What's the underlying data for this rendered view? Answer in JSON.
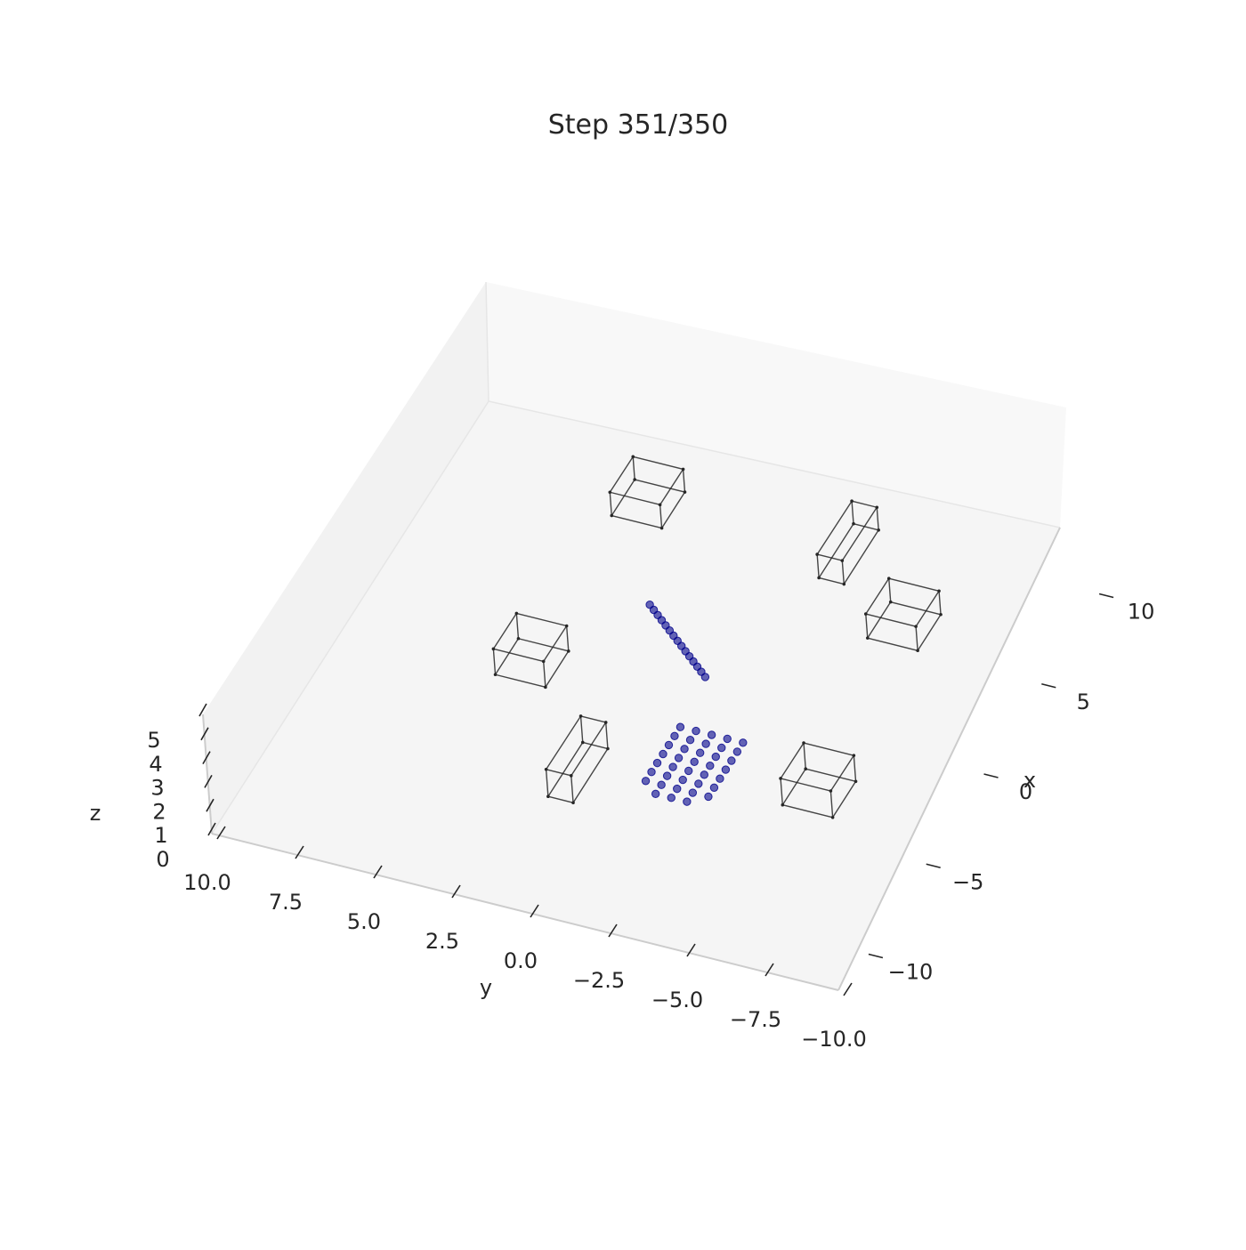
{
  "chart_data": {
    "type": "scatter",
    "projection": "3d",
    "title": "Step 351/350",
    "xlabel": "x",
    "ylabel": "y",
    "zlabel": "z",
    "xlim": [
      -12,
      12
    ],
    "ylim": [
      -10,
      10
    ],
    "zlim": [
      0,
      5
    ],
    "x_ticks": [
      "10",
      "5",
      "0",
      "−5",
      "−10"
    ],
    "y_ticks": [
      "10.0",
      "7.5",
      "5.0",
      "2.5",
      "0.0",
      "−2.5",
      "−5.0",
      "−7.5",
      "−10.0"
    ],
    "z_ticks": [
      "5",
      "4",
      "3",
      "2",
      "1",
      "0"
    ],
    "grid": false,
    "legend": "none",
    "point_color": "#00008b",
    "box_color": "#262626",
    "series": [
      {
        "role": "line-group",
        "points": [
          [
            4.0,
            1.9,
            0.2
          ],
          [
            3.8,
            1.7,
            0.2
          ],
          [
            3.6,
            1.5,
            0.2
          ],
          [
            3.4,
            1.3,
            0.2
          ],
          [
            3.2,
            1.1,
            0.2
          ],
          [
            3.0,
            0.9,
            0.2
          ],
          [
            2.8,
            0.7,
            0.2
          ],
          [
            2.6,
            0.5,
            0.2
          ],
          [
            2.4,
            0.3,
            0.2
          ],
          [
            2.2,
            0.1,
            0.2
          ],
          [
            2.0,
            -0.1,
            0.2
          ],
          [
            1.8,
            -0.3,
            0.2
          ],
          [
            1.6,
            -0.5,
            0.2
          ],
          [
            1.4,
            -0.7,
            0.2
          ],
          [
            1.2,
            -0.9,
            0.2
          ]
        ]
      },
      {
        "role": "grid-group",
        "points": [
          [
            -1.5,
            -1.1,
            0.2
          ],
          [
            -1.5,
            -1.6,
            0.2
          ],
          [
            -1.5,
            -2.1,
            0.2
          ],
          [
            -1.5,
            -2.6,
            0.2
          ],
          [
            -1.5,
            -3.1,
            0.2
          ],
          [
            -2.0,
            -1.1,
            0.2
          ],
          [
            -2.0,
            -1.6,
            0.2
          ],
          [
            -2.0,
            -2.1,
            0.2
          ],
          [
            -2.0,
            -2.6,
            0.2
          ],
          [
            -2.0,
            -3.1,
            0.2
          ],
          [
            -2.5,
            -1.1,
            0.2
          ],
          [
            -2.5,
            -1.6,
            0.2
          ],
          [
            -2.5,
            -2.1,
            0.2
          ],
          [
            -2.5,
            -2.6,
            0.2
          ],
          [
            -2.5,
            -3.1,
            0.2
          ],
          [
            -3.0,
            -1.1,
            0.2
          ],
          [
            -3.0,
            -1.6,
            0.2
          ],
          [
            -3.0,
            -2.1,
            0.2
          ],
          [
            -3.0,
            -2.6,
            0.2
          ],
          [
            -3.0,
            -3.1,
            0.2
          ],
          [
            -3.5,
            -1.1,
            0.2
          ],
          [
            -3.5,
            -1.6,
            0.2
          ],
          [
            -3.5,
            -2.1,
            0.2
          ],
          [
            -3.5,
            -2.6,
            0.2
          ],
          [
            -3.5,
            -3.1,
            0.2
          ],
          [
            -4.0,
            -1.1,
            0.2
          ],
          [
            -4.0,
            -1.6,
            0.2
          ],
          [
            -4.0,
            -2.1,
            0.2
          ],
          [
            -4.0,
            -2.6,
            0.2
          ],
          [
            -4.0,
            -3.1,
            0.2
          ],
          [
            -4.5,
            -1.1,
            0.2
          ],
          [
            -4.5,
            -1.6,
            0.2
          ],
          [
            -4.5,
            -2.1,
            0.2
          ],
          [
            -4.5,
            -2.6,
            0.2
          ],
          [
            -4.5,
            -3.1,
            0.2
          ],
          [
            -5.0,
            -1.6,
            0.2
          ],
          [
            -5.0,
            -2.1,
            0.2
          ],
          [
            -5.0,
            -2.6,
            0.2
          ]
        ]
      }
    ],
    "obstacles": [
      {
        "x": [
          8.0,
          10.0
        ],
        "y": [
          3.0,
          4.6
        ],
        "z": [
          0,
          1.2
        ]
      },
      {
        "x": [
          7.5,
          10.5
        ],
        "y": [
          -2.2,
          -3.0
        ],
        "z": [
          0,
          1.2
        ]
      },
      {
        "x": [
          5.2,
          7.2
        ],
        "y": [
          -4.6,
          -6.2
        ],
        "z": [
          0,
          1.2
        ]
      },
      {
        "x": [
          -1.0,
          1.0
        ],
        "y": [
          3.4,
          5.0
        ],
        "z": [
          0,
          1.2
        ]
      },
      {
        "x": [
          -3.8,
          -1.8
        ],
        "y": [
          -5.2,
          -6.8
        ],
        "z": [
          0,
          1.2
        ]
      },
      {
        "x": [
          -6.2,
          -3.2
        ],
        "y": [
          0.6,
          1.4
        ],
        "z": [
          0,
          1.2
        ]
      }
    ]
  }
}
